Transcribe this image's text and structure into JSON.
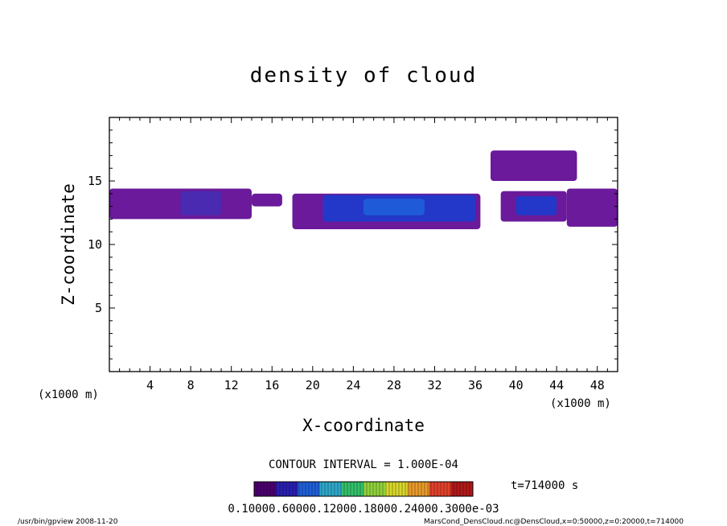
{
  "chart_data": {
    "type": "heatmap",
    "title": "density of cloud",
    "xlabel": "X-coordinate",
    "ylabel": "Z-coordinate",
    "x_unit_left": "(x1000 m)",
    "x_unit_right": "(x1000 m)",
    "xlim": [
      0,
      50
    ],
    "ylim": [
      0,
      20
    ],
    "xticks": [
      4,
      8,
      12,
      16,
      20,
      24,
      28,
      32,
      36,
      40,
      44,
      48
    ],
    "yticks": [
      5,
      10,
      15
    ],
    "contour_interval": "CONTOUR INTERVAL = 1.000E-04",
    "time_label": "t=714000 s",
    "colorbar_labels_text": "0.10000.60000.12000.18000.24000.3000e-03",
    "colorbar_colors": [
      "#4b006e",
      "#2a1fb0",
      "#1f5fd8",
      "#2fa6c8",
      "#33c06a",
      "#8fd13a",
      "#d8d62a",
      "#e89a2a",
      "#e0402a",
      "#b01818"
    ],
    "regions": [
      {
        "x": [
          0,
          14
        ],
        "z": [
          12,
          14.4
        ],
        "level": 0.15
      },
      {
        "x": [
          7,
          11
        ],
        "z": [
          12.3,
          14.2
        ],
        "level": 0.4
      },
      {
        "x": [
          14,
          17
        ],
        "z": [
          13,
          14
        ],
        "level": 0.1
      },
      {
        "x": [
          18,
          36.5
        ],
        "z": [
          11.2,
          14
        ],
        "level": 0.15
      },
      {
        "x": [
          21,
          36
        ],
        "z": [
          11.8,
          13.9
        ],
        "level": 0.55
      },
      {
        "x": [
          25,
          31
        ],
        "z": [
          12.3,
          13.6
        ],
        "level": 0.75
      },
      {
        "x": [
          37.5,
          46
        ],
        "z": [
          15,
          17.4
        ],
        "level": 0.15
      },
      {
        "x": [
          38.5,
          45
        ],
        "z": [
          11.8,
          14.2
        ],
        "level": 0.15
      },
      {
        "x": [
          40,
          44
        ],
        "z": [
          12.3,
          13.8
        ],
        "level": 0.5
      },
      {
        "x": [
          45,
          50
        ],
        "z": [
          11.4,
          14.4
        ],
        "level": 0.15
      }
    ]
  },
  "footer": {
    "left": "/usr/bin/gpview   2008-11-20",
    "right": "MarsCond_DensCloud.nc@DensCloud,x=0:50000,z=0:20000,t=714000"
  }
}
